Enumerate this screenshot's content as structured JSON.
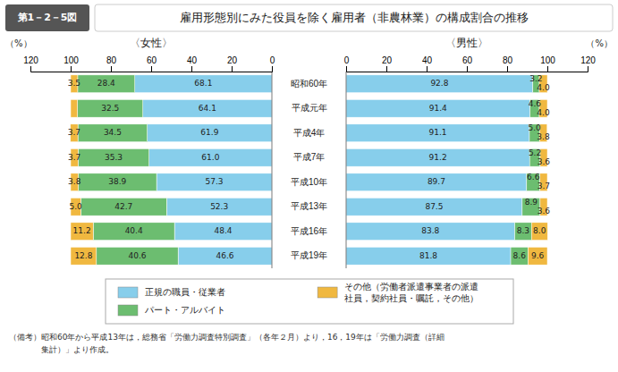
{
  "chart_data": [
    {
      "type": "bar",
      "orientation": "horizontal",
      "stacked": true,
      "data_labels": true,
      "title": "雇用形態別にみた役員を除く雇用者（非農林業）の構成割合の推移",
      "subtitle": "〈女性〉",
      "xlabel": "（%）",
      "annotations": [
        "第1－2－5図",
        "（備考）昭和60年から平成13年は，総務省「労働力調査特別調査」（各年２月）より，16，19年は「労働力調査（詳細",
        "　　　　集計）」より作成。"
      ],
      "categories": [
        "昭和60年",
        "平成元年",
        "平成4年",
        "平成7年",
        "平成10年",
        "平成13年",
        "平成16年",
        "平成19年"
      ],
      "xlim": [
        120,
        0
      ],
      "xticks": [
        0,
        20,
        40,
        60,
        80,
        100,
        120
      ],
      "series": [
        {
          "name": "正規の職員・従業者",
          "color": "#87CEEB",
          "values": [
            68.1,
            64.1,
            61.9,
            61.0,
            57.3,
            52.3,
            48.4,
            46.6
          ],
          "value_labels": [
            "68.1",
            "64.1",
            "61.9",
            "61.0",
            "57.3",
            "52.3",
            "48.4",
            "46.6"
          ]
        },
        {
          "name": "パート・アルバイト",
          "color": "#6CBD70",
          "values": [
            28.4,
            32.5,
            34.5,
            35.3,
            38.9,
            42.7,
            40.4,
            40.6
          ],
          "value_labels": [
            "28.4",
            "32.5",
            "34.5",
            "35.3",
            "38.9",
            "42.7",
            "40.4",
            "40.6"
          ]
        },
        {
          "name": "その他（労働者派遣事業者の派遣\n社員，契約社員・嘱託，その他）",
          "color": "#F0B840",
          "values": [
            3.5,
            3.4,
            3.7,
            3.7,
            3.8,
            5.0,
            11.2,
            12.8
          ],
          "value_labels": [
            "3.5",
            null,
            "3.7",
            "3.7",
            "3.8",
            "5.0",
            "11.2",
            "12.8"
          ]
        }
      ]
    },
    {
      "type": "bar",
      "orientation": "horizontal",
      "stacked": true,
      "data_labels": true,
      "subtitle": "〈男性〉",
      "xlabel": "（%）",
      "categories": [
        "昭和60年",
        "平成元年",
        "平成4年",
        "平成7年",
        "平成10年",
        "平成13年",
        "平成16年",
        "平成19年"
      ],
      "xlim": [
        0,
        120
      ],
      "xticks": [
        0,
        20,
        40,
        60,
        80,
        100,
        120
      ],
      "series": [
        {
          "color": "#87CEEB",
          "values": [
            92.8,
            91.4,
            91.1,
            91.2,
            89.7,
            87.5,
            83.8,
            81.8
          ],
          "value_labels": [
            "92.8",
            "91.4",
            "91.1",
            "91.2",
            "89.7",
            "87.5",
            "83.8",
            "81.8"
          ]
        },
        {
          "color": "#6CBD70",
          "values": [
            3.2,
            4.6,
            5.0,
            5.2,
            6.6,
            8.9,
            8.3,
            8.6
          ],
          "value_labels": [
            "3.2",
            "4.6",
            "5.0",
            "5.2",
            "6.6",
            "8.9",
            "8.3",
            "8.6"
          ]
        },
        {
          "color": "#F0B840",
          "values": [
            4.0,
            4.0,
            3.8,
            3.6,
            3.7,
            3.6,
            8.0,
            9.6
          ],
          "value_labels": [
            "4.0",
            "4.0",
            "3.8",
            "3.6",
            "3.7",
            "3.6",
            "8.0",
            "9.6"
          ]
        }
      ]
    }
  ]
}
